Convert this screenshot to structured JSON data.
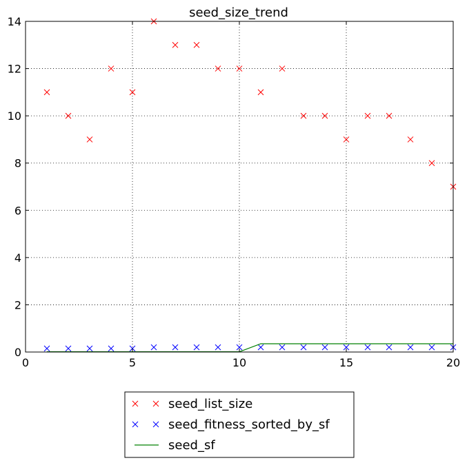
{
  "chart_data": {
    "type": "scatter",
    "title": "seed_size_trend",
    "xlabel": "",
    "ylabel": "",
    "xlim": [
      0,
      20
    ],
    "ylim": [
      0,
      14
    ],
    "xticks": [
      0,
      5,
      10,
      15,
      20
    ],
    "yticks": [
      0,
      2,
      4,
      6,
      8,
      10,
      12,
      14
    ],
    "grid": true,
    "legend_position": "below",
    "series": [
      {
        "name": "seed_list_size",
        "style": "x-marker",
        "color": "#ff0000",
        "x": [
          1,
          2,
          3,
          4,
          5,
          6,
          7,
          8,
          9,
          10,
          11,
          12,
          13,
          14,
          15,
          16,
          17,
          18,
          19,
          20
        ],
        "y": [
          11,
          10,
          9,
          12,
          11,
          14,
          13,
          13,
          12,
          12,
          11,
          12,
          10,
          10,
          9,
          10,
          10,
          9,
          8,
          7
        ]
      },
      {
        "name": "seed_fitness_sorted_by_sf",
        "style": "x-marker",
        "color": "#0000ff",
        "x": [
          1,
          2,
          3,
          4,
          5,
          6,
          7,
          8,
          9,
          10,
          11,
          12,
          13,
          14,
          15,
          16,
          17,
          18,
          19,
          20
        ],
        "y": [
          0.15,
          0.15,
          0.15,
          0.15,
          0.15,
          0.2,
          0.2,
          0.2,
          0.2,
          0.2,
          0.2,
          0.2,
          0.2,
          0.2,
          0.2,
          0.2,
          0.2,
          0.2,
          0.2,
          0.2
        ]
      },
      {
        "name": "seed_sf",
        "style": "line",
        "color": "#008000",
        "x": [
          1,
          2,
          3,
          4,
          5,
          6,
          7,
          8,
          9,
          10,
          11,
          12,
          13,
          14,
          15,
          16,
          17,
          18,
          19,
          20
        ],
        "y": [
          0.01,
          0.01,
          0.01,
          0.01,
          0.01,
          0.01,
          0.01,
          0.01,
          0.01,
          0.01,
          0.35,
          0.35,
          0.35,
          0.35,
          0.35,
          0.35,
          0.35,
          0.35,
          0.35,
          0.35
        ]
      }
    ]
  }
}
